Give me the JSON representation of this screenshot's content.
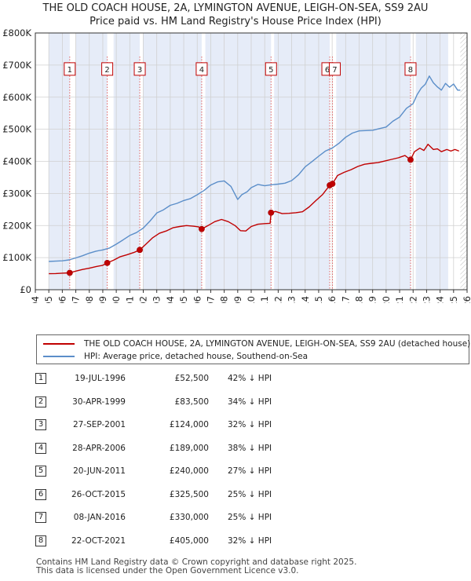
{
  "title": {
    "line1": "THE OLD COACH HOUSE, 2A, LYMINGTON AVENUE, LEIGH-ON-SEA, SS9 2AU",
    "line2": "Price paid vs. HM Land Registry's House Price Index (HPI)"
  },
  "colors": {
    "price_line": "#c00000",
    "hpi_line": "#5b8ec9",
    "shading": "#e6ecf8",
    "marker_box": "#c00000"
  },
  "chart_data": {
    "type": "line",
    "title": "Price paid vs. HM Land Registry's House Price Index (HPI)",
    "xlabel": "",
    "ylabel": "",
    "xlim": [
      1994,
      2026
    ],
    "ylim": [
      0,
      800000
    ],
    "x_ticks": [
      "1994",
      "1995",
      "1996",
      "1997",
      "1998",
      "1999",
      "2000",
      "2001",
      "2002",
      "2003",
      "2004",
      "2005",
      "2006",
      "2007",
      "2008",
      "2009",
      "2010",
      "2011",
      "2012",
      "2013",
      "2014",
      "2015",
      "2016",
      "2017",
      "2018",
      "2019",
      "2020",
      "2021",
      "2022",
      "2023",
      "2024",
      "2025",
      "2026"
    ],
    "y_ticks": [
      {
        "value": 0,
        "label": "£0"
      },
      {
        "value": 100000,
        "label": "£100K"
      },
      {
        "value": 200000,
        "label": "£200K"
      },
      {
        "value": 300000,
        "label": "£300K"
      },
      {
        "value": 400000,
        "label": "£400K"
      },
      {
        "value": 500000,
        "label": "£500K"
      },
      {
        "value": 600000,
        "label": "£600K"
      },
      {
        "value": 700000,
        "label": "£700K"
      },
      {
        "value": 800000,
        "label": "£800K"
      }
    ],
    "data_start": 1995,
    "data_end": 2025.5,
    "shaded_ranges": [
      [
        1995,
        1996.55
      ],
      [
        1997.0,
        1999.33
      ],
      [
        1999.8,
        2001.74
      ],
      [
        2002.0,
        2006.33
      ],
      [
        2006.6,
        2011.47
      ],
      [
        2011.7,
        2015.82
      ],
      [
        2016.3,
        2021.81
      ],
      [
        2022.2,
        2024.6
      ]
    ],
    "series": [
      {
        "name": "THE OLD COACH HOUSE, 2A, LYMINGTON AVENUE, LEIGH-ON-SEA, SS9 2AU (detached house)",
        "color": "#c00000",
        "x": [
          1995,
          1995.5,
          1996,
          1996.55,
          1997,
          1997.5,
          1998,
          1998.5,
          1999,
          1999.33,
          1999.8,
          2000.3,
          2000.8,
          2001.3,
          2001.74,
          2002.2,
          2002.7,
          2003.2,
          2003.7,
          2004.2,
          2004.7,
          2005.2,
          2005.7,
          2006.1,
          2006.33,
          2006.8,
          2007.3,
          2007.8,
          2008.3,
          2008.8,
          2009.2,
          2009.6,
          2010,
          2010.5,
          2011,
          2011.4,
          2011.47,
          2011.8,
          2012.3,
          2012.8,
          2013.3,
          2013.8,
          2014.3,
          2014.8,
          2015.3,
          2015.82,
          2016.02,
          2016.4,
          2016.9,
          2017.4,
          2017.9,
          2018.4,
          2018.9,
          2019.4,
          2019.9,
          2020.4,
          2020.9,
          2021.4,
          2021.81,
          2022.1,
          2022.5,
          2022.8,
          2023.1,
          2023.5,
          2023.8,
          2024.1,
          2024.5,
          2024.8,
          2025.1,
          2025.4
        ],
        "values": [
          50000,
          50500,
          51500,
          52500,
          58000,
          63000,
          67000,
          72000,
          76000,
          83500,
          92000,
          103000,
          109000,
          116000,
          124000,
          142000,
          162000,
          176000,
          183000,
          193000,
          197000,
          200000,
          198000,
          196000,
          189000,
          200000,
          212000,
          219000,
          212000,
          200000,
          184000,
          183000,
          197000,
          204000,
          206000,
          207000,
          240000,
          244000,
          237000,
          238000,
          240000,
          243000,
          258000,
          278000,
          297000,
          325500,
          330000,
          356000,
          366000,
          374000,
          384000,
          391000,
          394000,
          396000,
          401000,
          406000,
          411000,
          418000,
          405000,
          430000,
          441000,
          434000,
          453000,
          437000,
          439000,
          430000,
          437000,
          432000,
          437000,
          432000
        ]
      },
      {
        "name": "HPI: Average price, detached house, Southend-on-Sea",
        "color": "#5b8ec9",
        "x": [
          1995,
          1995.5,
          1996,
          1996.5,
          1997,
          1997.5,
          1998,
          1998.5,
          1999,
          1999.5,
          2000,
          2000.5,
          2001,
          2001.5,
          2002,
          2002.5,
          2003,
          2003.5,
          2004,
          2004.5,
          2005,
          2005.5,
          2006,
          2006.5,
          2007,
          2007.5,
          2008,
          2008.5,
          2009,
          2009.3,
          2009.7,
          2010,
          2010.5,
          2011,
          2011.5,
          2012,
          2012.5,
          2013,
          2013.5,
          2014,
          2014.5,
          2015,
          2015.5,
          2016,
          2016.5,
          2017,
          2017.5,
          2018,
          2018.5,
          2019,
          2019.5,
          2020,
          2020.5,
          2021,
          2021.5,
          2022,
          2022.3,
          2022.6,
          2022.9,
          2023.2,
          2023.5,
          2023.8,
          2024.1,
          2024.4,
          2024.7,
          2025,
          2025.3,
          2025.5
        ],
        "values": [
          88000,
          89000,
          90000,
          93000,
          99000,
          106000,
          114000,
          120000,
          124000,
          130000,
          142000,
          155000,
          169000,
          178000,
          192000,
          214000,
          239000,
          249000,
          263000,
          269000,
          278000,
          284000,
          296000,
          309000,
          326000,
          336000,
          339000,
          322000,
          281000,
          296000,
          305000,
          318000,
          328000,
          324000,
          327000,
          329000,
          332000,
          340000,
          358000,
          383000,
          399000,
          416000,
          432000,
          441000,
          456000,
          475000,
          488000,
          495000,
          496000,
          497000,
          502000,
          507000,
          525000,
          538000,
          565000,
          580000,
          608000,
          628000,
          640000,
          666000,
          645000,
          632000,
          622000,
          643000,
          631000,
          641000,
          622000,
          622000
        ]
      }
    ],
    "sales": [
      {
        "id": "1",
        "x": 1996.55,
        "value": 52500
      },
      {
        "id": "2",
        "x": 1999.33,
        "value": 83500
      },
      {
        "id": "3",
        "x": 2001.74,
        "value": 124000
      },
      {
        "id": "4",
        "x": 2006.33,
        "value": 189000
      },
      {
        "id": "5",
        "x": 2011.47,
        "value": 240000
      },
      {
        "id": "6",
        "x": 2015.82,
        "value": 325500
      },
      {
        "id": "7",
        "x": 2016.02,
        "value": 330000
      },
      {
        "id": "8",
        "x": 2021.81,
        "value": 405000
      }
    ],
    "legend": {
      "position": "bottom",
      "entries": [
        "THE OLD COACH HOUSE, 2A, LYMINGTON AVENUE, LEIGH-ON-SEA, SS9 2AU (detached house)",
        "HPI: Average price, detached house, Southend-on-Sea"
      ]
    }
  },
  "transactions": [
    {
      "num": "1",
      "date": "19-JUL-1996",
      "price": "£52,500",
      "hpi": "42% ↓ HPI"
    },
    {
      "num": "2",
      "date": "30-APR-1999",
      "price": "£83,500",
      "hpi": "34% ↓ HPI"
    },
    {
      "num": "3",
      "date": "27-SEP-2001",
      "price": "£124,000",
      "hpi": "32% ↓ HPI"
    },
    {
      "num": "4",
      "date": "28-APR-2006",
      "price": "£189,000",
      "hpi": "38% ↓ HPI"
    },
    {
      "num": "5",
      "date": "20-JUN-2011",
      "price": "£240,000",
      "hpi": "27% ↓ HPI"
    },
    {
      "num": "6",
      "date": "26-OCT-2015",
      "price": "£325,500",
      "hpi": "25% ↓ HPI"
    },
    {
      "num": "7",
      "date": "08-JAN-2016",
      "price": "£330,000",
      "hpi": "25% ↓ HPI"
    },
    {
      "num": "8",
      "date": "22-OCT-2021",
      "price": "£405,000",
      "hpi": "32% ↓ HPI"
    }
  ],
  "footer": {
    "line1": "Contains HM Land Registry data © Crown copyright and database right 2025.",
    "line2": "This data is licensed under the Open Government Licence v3.0."
  }
}
